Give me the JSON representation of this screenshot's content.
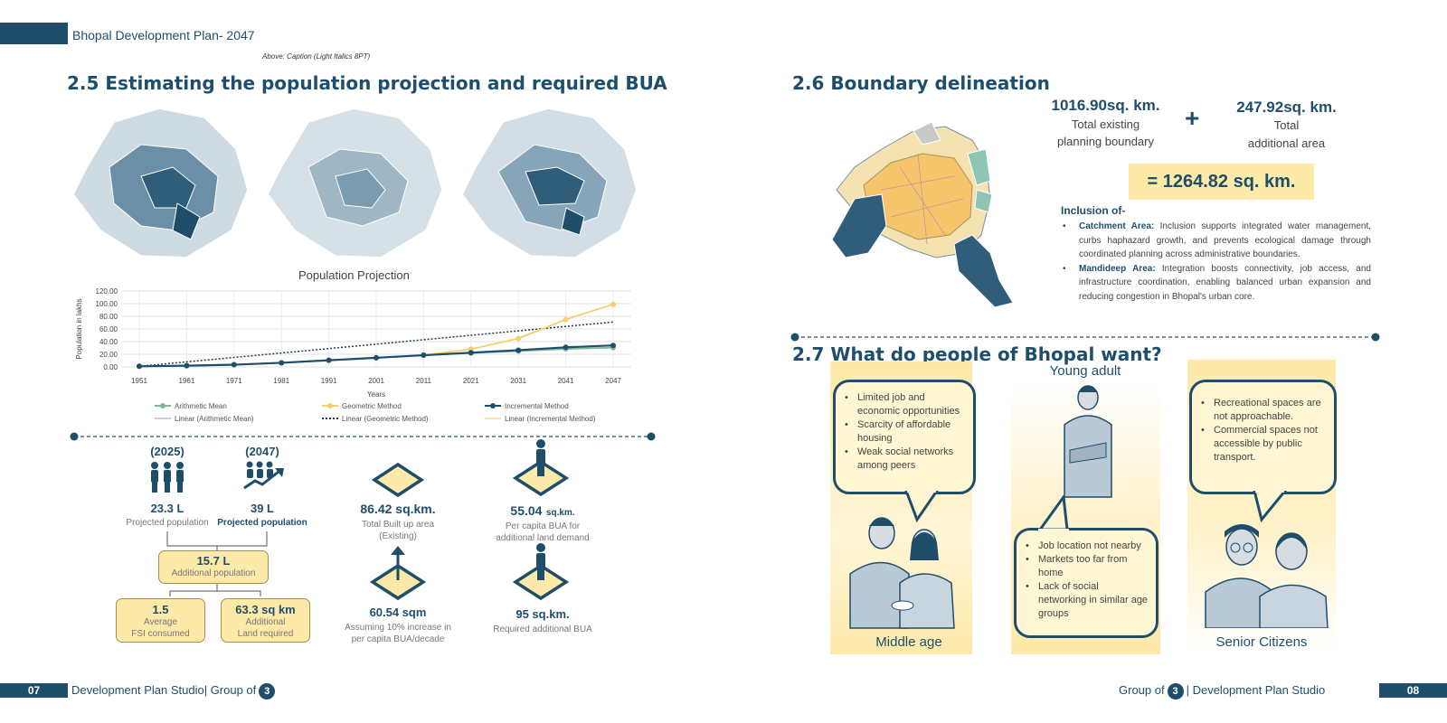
{
  "header": {
    "title": "Bhopal Development Plan- 2047",
    "caption": "Above: Caption (Light Italics 8PT)"
  },
  "left": {
    "heading": "2.5 Estimating the population projection and required BUA",
    "chart_title": "Population Projection",
    "stats": {
      "y2025": "(2025)",
      "y2047": "(2047)",
      "pop2025_value": "23.3 L",
      "pop2025_label": "Projected population",
      "pop2047_value": "39 L",
      "pop2047_label": "Projected population",
      "additional_value": "15.7 L",
      "additional_label": "Additional population",
      "fsi_value": "1.5",
      "fsi_label1": "Average",
      "fsi_label2": "FSI consumed",
      "land_value": "63.3 sq km",
      "land_label1": "Additional",
      "land_label2": "Land required",
      "bua_total_value": "86.42 sq.km.",
      "bua_total_label1": "Total Built up area",
      "bua_total_label2": "(Existing)",
      "percap_value": "55.04",
      "percap_unit": "sq.km.",
      "percap_label1": "Per capita BUA for",
      "percap_label2": "additional land demand",
      "sqm_value": "60.54 sqm",
      "sqm_label1": "Assuming 10% increase in",
      "sqm_label2": "per capita BUA/decade",
      "req_value": "95 sq.km.",
      "req_label": "Required additional BUA"
    }
  },
  "chart_data": {
    "type": "line",
    "title": "Population Projection",
    "xlabel": "Years",
    "ylabel": "Population in lakhs",
    "ylim": [
      0,
      120
    ],
    "yticks": [
      "0.00",
      "20.00",
      "40.00",
      "60.00",
      "80.00",
      "100.00",
      "120.00"
    ],
    "categories": [
      "1951",
      "1961",
      "1971",
      "1981",
      "1991",
      "2001",
      "2011",
      "2021",
      "2031",
      "2041",
      "2047"
    ],
    "series": [
      {
        "name": "Arithmetic Mean",
        "color": "#7fb59a",
        "values": [
          1,
          2,
          3.5,
          6.5,
          10.5,
          14.5,
          18.5,
          22,
          25,
          28.5,
          30.5
        ]
      },
      {
        "name": "Geometric Method",
        "color": "#f5cf6b",
        "values": [
          1,
          2,
          3.5,
          6.5,
          10.5,
          14.5,
          18.5,
          28,
          45,
          75,
          99
        ]
      },
      {
        "name": "Incremental Method",
        "color": "#1f4e6b",
        "values": [
          1,
          2,
          3.5,
          6.5,
          10.5,
          14.5,
          18.5,
          22.5,
          26.5,
          31,
          34
        ]
      }
    ],
    "trendlines": [
      {
        "name": "Linear (Arithmetic Mean)",
        "color": "#c9cfd4"
      },
      {
        "name": "Linear (Geometric Method)",
        "color": "#1f3a4d",
        "from": 1,
        "to": 71
      },
      {
        "name": "Linear (Incremental Method)",
        "color": "#f6e3b0"
      }
    ],
    "legend": "bottom"
  },
  "right": {
    "boundary_heading": "2.6 Boundary delineation",
    "existing_value": "1016.90sq. km.",
    "existing_label1": "Total existing",
    "existing_label2": "planning boundary",
    "plus": "+",
    "additional_value": "247.92sq. km.",
    "additional_label1": "Total",
    "additional_label2": "additional area",
    "total": "= 1264.82 sq. km.",
    "inclusion_title": "Inclusion of-",
    "catchment_label": "Catchment Area:",
    "catchment_text": " Inclusion supports integrated water management, curbs haphazard growth, and prevents ecological damage through coordinated planning across administrative boundaries.",
    "mandideep_label": "Mandideep Area:",
    "mandideep_text": " Integration boosts connectivity, job access, and infrastructure coordination, enabling balanced urban expansion and reducing congestion in Bhopal's urban core.",
    "people_heading": "2.7 What do people of Bhopal want?",
    "groups": {
      "middle": {
        "label": "Middle age",
        "points": [
          "Limited job and economic opportunities",
          "Scarcity of affordable housing",
          "Weak social networks among peers"
        ]
      },
      "young": {
        "label": "Young adult",
        "points": [
          "Job location not nearby",
          "Markets too far from home",
          "Lack of social networking in similar age groups"
        ]
      },
      "senior": {
        "label": "Senior Citizens",
        "points": [
          "Recreational spaces are not approachable.",
          "Commercial spaces not accessible by public transport."
        ]
      }
    }
  },
  "footer": {
    "left_page": "07",
    "left_text": "Development Plan Studio| Group of",
    "group_no": "3",
    "right_text_a": "Group of",
    "right_text_b": "| Development Plan Studio",
    "right_page": "08"
  },
  "colors": {
    "navy": "#1f4e6b",
    "yellow": "#fde9a8",
    "map_orange": "#f5c46b"
  }
}
